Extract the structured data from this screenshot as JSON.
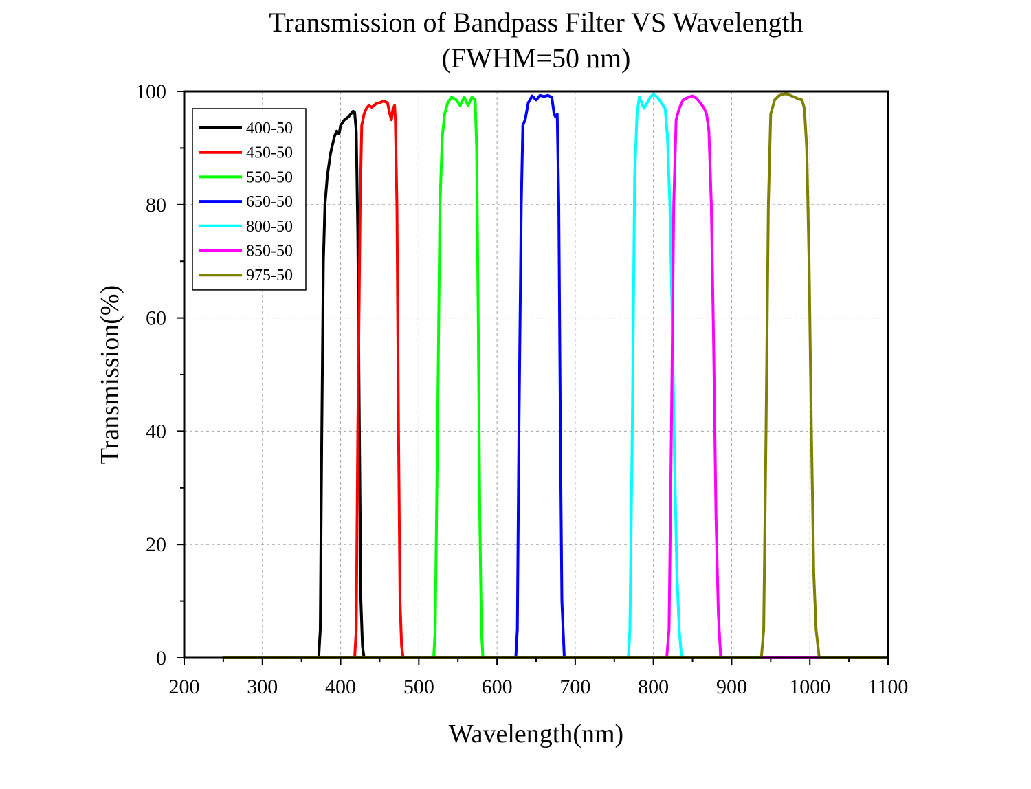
{
  "chart_data": {
    "type": "line",
    "title": "Transmission of Bandpass Filter VS Wavelength",
    "subtitle": "(FWHM=50 nm)",
    "xlabel": "Wavelength(nm)",
    "ylabel": "Transmission(%)",
    "xlim": [
      200,
      1100
    ],
    "ylim": [
      0,
      100
    ],
    "xticks": [
      "200",
      "300",
      "400",
      "500",
      "600",
      "700",
      "800",
      "900",
      "1000",
      "1100"
    ],
    "yticks": [
      "0",
      "20",
      "40",
      "60",
      "80",
      "100"
    ],
    "grid": true,
    "legend_position": "top-left",
    "series": [
      {
        "name": "400-50",
        "color": "#000000",
        "points": [
          [
            250,
            0
          ],
          [
            372,
            0
          ],
          [
            374,
            5
          ],
          [
            376,
            40
          ],
          [
            378,
            70
          ],
          [
            380,
            80
          ],
          [
            383,
            85
          ],
          [
            387,
            89
          ],
          [
            392,
            92
          ],
          [
            395,
            93
          ],
          [
            398,
            92.5
          ],
          [
            400,
            94
          ],
          [
            405,
            95
          ],
          [
            410,
            95.5
          ],
          [
            413,
            96
          ],
          [
            416,
            96.5
          ],
          [
            418,
            96.3
          ],
          [
            420,
            93
          ],
          [
            422,
            75
          ],
          [
            424,
            40
          ],
          [
            426,
            10
          ],
          [
            428,
            2
          ],
          [
            430,
            0
          ],
          [
            1100,
            0
          ]
        ]
      },
      {
        "name": "450-50",
        "color": "#ff0000",
        "points": [
          [
            250,
            0
          ],
          [
            418,
            0
          ],
          [
            420,
            5
          ],
          [
            422,
            40
          ],
          [
            425,
            80
          ],
          [
            427,
            94
          ],
          [
            430,
            96
          ],
          [
            433,
            97
          ],
          [
            436,
            97.5
          ],
          [
            440,
            97.2
          ],
          [
            445,
            97.8
          ],
          [
            450,
            98
          ],
          [
            455,
            98.3
          ],
          [
            460,
            98
          ],
          [
            463,
            96
          ],
          [
            465,
            95
          ],
          [
            467,
            97
          ],
          [
            469,
            97.5
          ],
          [
            470,
            95
          ],
          [
            472,
            80
          ],
          [
            474,
            40
          ],
          [
            476,
            10
          ],
          [
            478,
            2
          ],
          [
            480,
            0
          ],
          [
            1100,
            0
          ]
        ]
      },
      {
        "name": "550-50",
        "color": "#00ff00",
        "points": [
          [
            250,
            0
          ],
          [
            519,
            0
          ],
          [
            521,
            5
          ],
          [
            524,
            40
          ],
          [
            527,
            80
          ],
          [
            530,
            92
          ],
          [
            533,
            96
          ],
          [
            537,
            98
          ],
          [
            542,
            99
          ],
          [
            548,
            98.5
          ],
          [
            553,
            97.5
          ],
          [
            558,
            99
          ],
          [
            563,
            97.5
          ],
          [
            568,
            99
          ],
          [
            572,
            98.5
          ],
          [
            574,
            90
          ],
          [
            576,
            60
          ],
          [
            578,
            25
          ],
          [
            580,
            5
          ],
          [
            582,
            0
          ],
          [
            1100,
            0
          ]
        ]
      },
      {
        "name": "650-50",
        "color": "#0000ff",
        "points": [
          [
            250,
            0
          ],
          [
            624,
            0
          ],
          [
            626,
            5
          ],
          [
            628,
            40
          ],
          [
            631,
            80
          ],
          [
            633,
            94
          ],
          [
            636,
            95
          ],
          [
            640,
            98
          ],
          [
            645,
            99.2
          ],
          [
            650,
            98.5
          ],
          [
            655,
            99.3
          ],
          [
            660,
            99.1
          ],
          [
            665,
            99.3
          ],
          [
            670,
            99
          ],
          [
            673,
            96
          ],
          [
            675,
            95.5
          ],
          [
            677,
            96
          ],
          [
            679,
            80
          ],
          [
            681,
            40
          ],
          [
            683,
            10
          ],
          [
            686,
            0
          ],
          [
            1100,
            0
          ]
        ]
      },
      {
        "name": "800-50",
        "color": "#00ffff",
        "points": [
          [
            250,
            0
          ],
          [
            768,
            0
          ],
          [
            770,
            5
          ],
          [
            773,
            40
          ],
          [
            776,
            85
          ],
          [
            779,
            96
          ],
          [
            782,
            99
          ],
          [
            785,
            98
          ],
          [
            788,
            97
          ],
          [
            792,
            98
          ],
          [
            796,
            99
          ],
          [
            800,
            99.5
          ],
          [
            805,
            99
          ],
          [
            810,
            98
          ],
          [
            815,
            97
          ],
          [
            818,
            92
          ],
          [
            821,
            80
          ],
          [
            824,
            60
          ],
          [
            827,
            35
          ],
          [
            830,
            15
          ],
          [
            833,
            5
          ],
          [
            836,
            0
          ],
          [
            1100,
            0
          ]
        ]
      },
      {
        "name": "850-50",
        "color": "#ff00ff",
        "points": [
          [
            250,
            0
          ],
          [
            817,
            0
          ],
          [
            820,
            5
          ],
          [
            823,
            40
          ],
          [
            826,
            80
          ],
          [
            829,
            95
          ],
          [
            833,
            97
          ],
          [
            838,
            98.5
          ],
          [
            845,
            99
          ],
          [
            850,
            99.2
          ],
          [
            855,
            98.8
          ],
          [
            860,
            98
          ],
          [
            865,
            97
          ],
          [
            868,
            96
          ],
          [
            871,
            93
          ],
          [
            874,
            80
          ],
          [
            877,
            55
          ],
          [
            880,
            25
          ],
          [
            883,
            8
          ],
          [
            886,
            0
          ],
          [
            1100,
            0
          ]
        ]
      },
      {
        "name": "975-50",
        "color": "#808000",
        "points": [
          [
            250,
            0
          ],
          [
            938,
            0
          ],
          [
            941,
            5
          ],
          [
            944,
            40
          ],
          [
            947,
            80
          ],
          [
            950,
            96
          ],
          [
            955,
            98.5
          ],
          [
            960,
            99.2
          ],
          [
            965,
            99.5
          ],
          [
            970,
            99.6
          ],
          [
            975,
            99.3
          ],
          [
            980,
            99
          ],
          [
            985,
            98.7
          ],
          [
            990,
            98.5
          ],
          [
            993,
            97
          ],
          [
            996,
            90
          ],
          [
            999,
            70
          ],
          [
            1002,
            40
          ],
          [
            1005,
            15
          ],
          [
            1008,
            5
          ],
          [
            1012,
            0
          ],
          [
            1100,
            0
          ]
        ]
      }
    ]
  }
}
